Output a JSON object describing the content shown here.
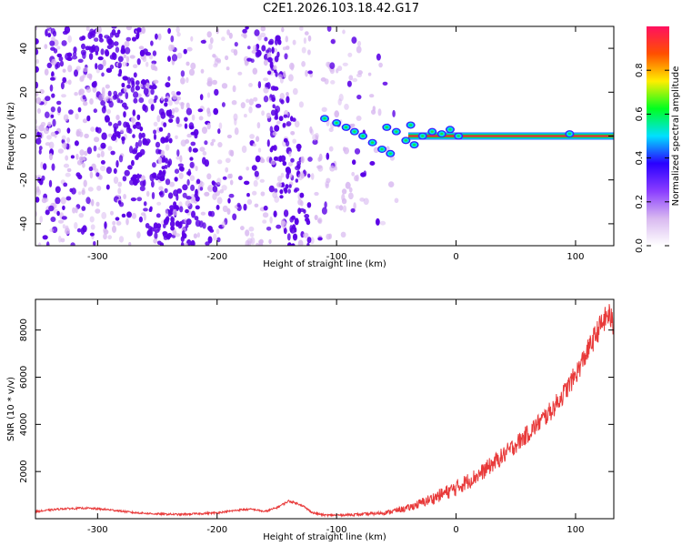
{
  "page_title": "C2E1.2026.103.18.42.G17",
  "colors": {
    "purple_dense": "#5a00e6",
    "purple_light": "#d8b8f0",
    "snr_line": "#e83a3a",
    "colorbar_stops": [
      "#ffffff",
      "#d8b8f0",
      "#8a3cff",
      "#2a00ff",
      "#00e0ff",
      "#00ff20",
      "#ffee00",
      "#ff5000",
      "#ff1060"
    ]
  },
  "chart_data": [
    {
      "type": "heatmap",
      "title": "C2E1.2026.103.18.42.G17",
      "xlabel": "Height of straight line (km)",
      "ylabel": "Frequency (Hz)",
      "xlim": [
        -352,
        132
      ],
      "ylim": [
        -50,
        50
      ],
      "xticks": [
        -300,
        -200,
        -100,
        0,
        100
      ],
      "yticks": [
        -40,
        -20,
        0,
        20,
        40
      ],
      "colorbar": {
        "label": "Normalized spectral amplitude",
        "range": [
          0,
          1
        ],
        "ticks": [
          "0.0",
          "0.2",
          "0.4",
          "0.6",
          "0.8"
        ]
      },
      "features": {
        "carrier_line": {
          "x_from": -40,
          "x_to": 132,
          "y": 0,
          "amplitude": 0.9
        },
        "diagonal_band_1": {
          "x_at_top": -300,
          "x_at_bottom": -230
        },
        "diagonal_band_2": {
          "x_at_top": -160,
          "x_at_bottom": -130
        },
        "noise_extent_x": [
          -352,
          -50
        ],
        "transition_blobs": [
          {
            "x": -110,
            "y": 8
          },
          {
            "x": -100,
            "y": 6
          },
          {
            "x": -92,
            "y": 4
          },
          {
            "x": -85,
            "y": 2
          },
          {
            "x": -78,
            "y": 0
          },
          {
            "x": -70,
            "y": -3
          },
          {
            "x": -62,
            "y": -6
          },
          {
            "x": -55,
            "y": -8
          },
          {
            "x": -58,
            "y": 4
          },
          {
            "x": -50,
            "y": 2
          },
          {
            "x": -42,
            "y": -2
          },
          {
            "x": -38,
            "y": 5
          },
          {
            "x": -35,
            "y": -4
          },
          {
            "x": -28,
            "y": 0
          },
          {
            "x": -20,
            "y": 2
          },
          {
            "x": -12,
            "y": 1
          },
          {
            "x": -5,
            "y": 3
          },
          {
            "x": 2,
            "y": 0
          },
          {
            "x": 95,
            "y": 1
          }
        ]
      }
    },
    {
      "type": "line",
      "xlabel": "Height of straight line (km)",
      "ylabel": "SNR (10 * v/v)",
      "xlim": [
        -352,
        132
      ],
      "ylim": [
        0,
        9300
      ],
      "xticks": [
        -300,
        -200,
        -100,
        0,
        100
      ],
      "yticks": [
        2000,
        4000,
        6000,
        8000
      ],
      "series": [
        {
          "x": [
            -352,
            -330,
            -310,
            -290,
            -270,
            -250,
            -230,
            -200,
            -180,
            -170,
            -160,
            -150,
            -140,
            -130,
            -120,
            -110,
            -100,
            -80,
            -60,
            -40,
            -20,
            0,
            20,
            40,
            60,
            80,
            90,
            100,
            110,
            120,
            128,
            132
          ],
          "y": [
            300,
            420,
            450,
            380,
            260,
            200,
            180,
            250,
            380,
            400,
            300,
            470,
            750,
            600,
            250,
            150,
            150,
            180,
            250,
            450,
            850,
            1300,
            1900,
            2700,
            3600,
            4600,
            5300,
            6100,
            7100,
            8100,
            8700,
            8100
          ],
          "noise_amplitude": [
            40,
            40,
            40,
            40,
            40,
            40,
            40,
            40,
            40,
            40,
            40,
            40,
            50,
            50,
            40,
            40,
            40,
            60,
            80,
            150,
            250,
            350,
            350,
            380,
            400,
            420,
            430,
            450,
            480,
            520,
            550,
            550
          ]
        }
      ]
    }
  ]
}
